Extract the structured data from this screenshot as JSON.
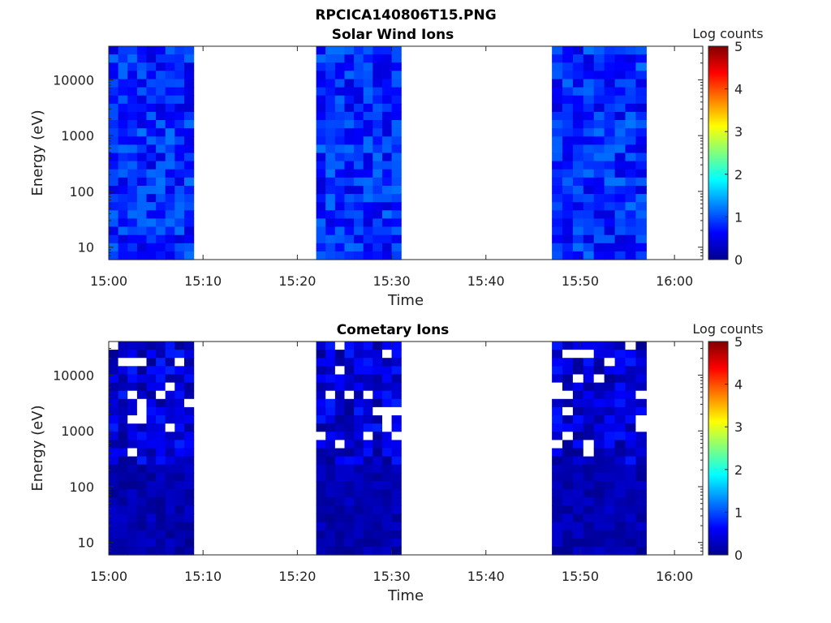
{
  "figure_title": "RPCICA140806T15.PNG",
  "chart_data": [
    {
      "type": "heatmap",
      "title": "Solar Wind Ions",
      "xlabel": "Time",
      "ylabel": "Energy (eV)",
      "x_ticks": [
        "15:00",
        "15:10",
        "15:20",
        "15:30",
        "15:40",
        "15:50",
        "16:00"
      ],
      "y_ticks": [
        "10",
        "100",
        "1000",
        "10000"
      ],
      "y_scale": "log",
      "ylim": [
        6,
        40000
      ],
      "xlim": [
        "15:00",
        "16:03"
      ],
      "colorbar": {
        "label": "Log counts",
        "ticks": [
          "0",
          "1",
          "2",
          "3",
          "4",
          "5"
        ],
        "range": [
          0,
          5
        ],
        "colormap": "jet"
      },
      "data_intervals": [
        {
          "start": "15:00",
          "end": "15:09"
        },
        {
          "start": "15:22",
          "end": "15:31"
        },
        {
          "start": "15:47",
          "end": "15:57"
        }
      ],
      "typical_log_counts": [
        0.4,
        1.2
      ],
      "gaps_shown_as": "white"
    },
    {
      "type": "heatmap",
      "title": "Cometary Ions",
      "xlabel": "Time",
      "ylabel": "Energy (eV)",
      "x_ticks": [
        "15:00",
        "15:10",
        "15:20",
        "15:30",
        "15:40",
        "15:50",
        "16:00"
      ],
      "y_ticks": [
        "10",
        "100",
        "1000",
        "10000"
      ],
      "y_scale": "log",
      "ylim": [
        6,
        40000
      ],
      "xlim": [
        "15:00",
        "16:03"
      ],
      "colorbar": {
        "label": "Log counts",
        "ticks": [
          "0",
          "1",
          "2",
          "3",
          "4",
          "5"
        ],
        "range": [
          0,
          5
        ],
        "colormap": "jet"
      },
      "data_intervals": [
        {
          "start": "15:00",
          "end": "15:09"
        },
        {
          "start": "15:22",
          "end": "15:31"
        },
        {
          "start": "15:47",
          "end": "15:57"
        }
      ],
      "typical_log_counts": [
        0.0,
        0.8
      ],
      "gaps_shown_as": "white"
    }
  ]
}
